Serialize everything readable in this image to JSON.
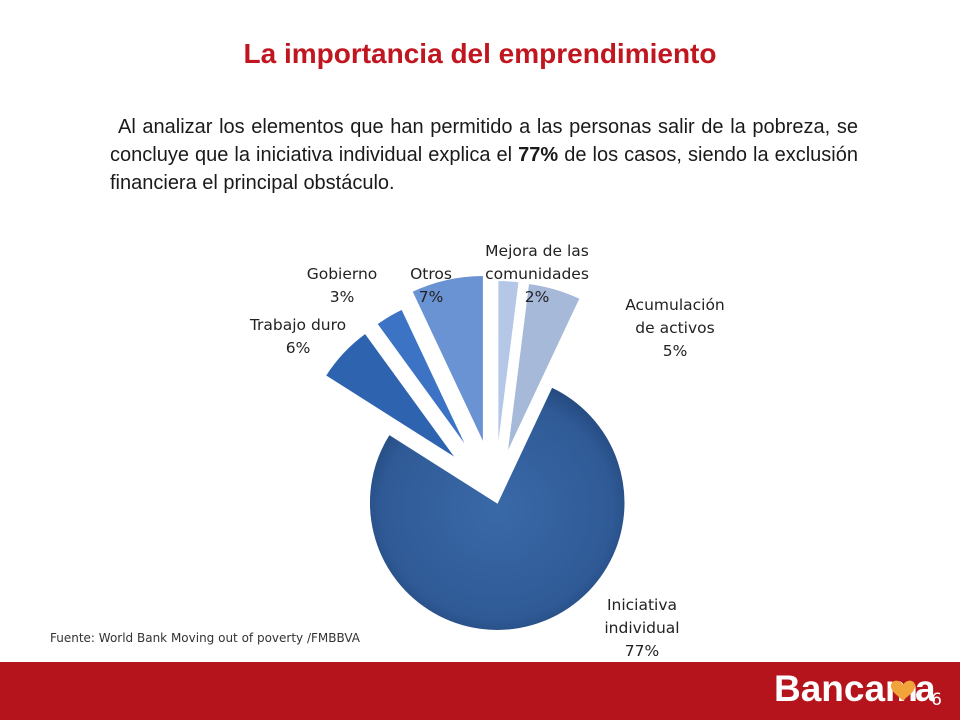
{
  "slide": {
    "title": "La importancia del emprendimiento",
    "intro_before": "Al analizar los elementos que han permitido a las personas salir de la pobreza,  se concluye que la iniciativa individual explica el ",
    "intro_highlight": "77%",
    "intro_after": " de los casos, siendo la exclusión financiera el principal obstáculo.",
    "source": "Fuente: World Bank Moving out of poverty /FMBBVA",
    "page_number": "6"
  },
  "logo": {
    "text": "Bancamía",
    "colors": {
      "wordmark": "#ffffff",
      "heart": "#f2a33a"
    }
  },
  "colors": {
    "title": "#c0161f",
    "footer_bar": "#b5141c"
  },
  "chart_data": {
    "type": "pie",
    "exploded": true,
    "slices": [
      {
        "label_lines": [
          "Mejora de las",
          "comunidades"
        ],
        "value_label": "2%",
        "value": 2,
        "color": "#b4c7e7"
      },
      {
        "label_lines": [
          "Acumulación",
          "de activos"
        ],
        "value_label": "5%",
        "value": 5,
        "color": "#a6b9d9"
      },
      {
        "label_lines": [
          "Iniciativa",
          "individual"
        ],
        "value_label": "77%",
        "value": 77,
        "color": "#2f5a96"
      },
      {
        "label_lines": [
          "Trabajo duro"
        ],
        "value_label": "6%",
        "value": 6,
        "color": "#2e63b0"
      },
      {
        "label_lines": [
          "Gobierno"
        ],
        "value_label": "3%",
        "value": 3,
        "color": "#3d73c4"
      },
      {
        "label_lines": [
          "Otros"
        ],
        "value_label": "7%",
        "value": 7,
        "color": "#6a93d4"
      }
    ]
  }
}
